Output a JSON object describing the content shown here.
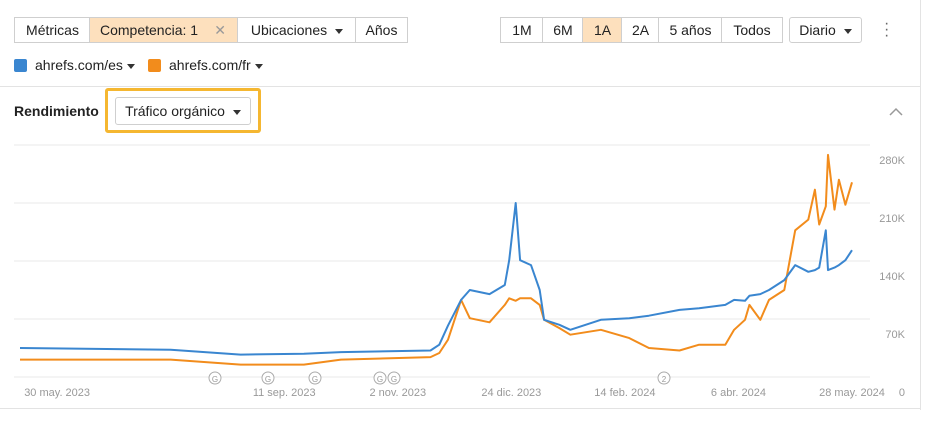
{
  "toolbar": {
    "metrics": "Métricas",
    "competition": "Competencia: 1",
    "locations": "Ubicaciones",
    "years": "Años",
    "ranges": [
      "1M",
      "6M",
      "1A",
      "2A",
      "5 años",
      "Todos"
    ],
    "interval": "Diario"
  },
  "section": {
    "title": "Rendimiento",
    "metric": "Tráfico orgánico"
  },
  "chart_data": {
    "type": "line",
    "x": [
      "2023-05-13",
      "2023-07-21",
      "2023-08-22",
      "2023-09-20",
      "2023-10-07",
      "2023-11-17",
      "2023-11-21",
      "2023-11-25",
      "2023-12-01",
      "2023-12-05",
      "2023-12-14",
      "2023-12-21",
      "2023-12-23",
      "2023-12-26",
      "2023-12-28",
      "2024-01-02",
      "2024-01-06",
      "2024-01-08",
      "2024-01-15",
      "2024-01-20",
      "2024-02-03",
      "2024-02-16",
      "2024-02-25",
      "2024-03-10",
      "2024-03-19",
      "2024-03-31",
      "2024-04-04",
      "2024-04-09",
      "2024-04-11",
      "2024-04-16",
      "2024-04-20",
      "2024-04-27",
      "2024-05-02",
      "2024-05-08",
      "2024-05-11",
      "2024-05-13",
      "2024-05-16",
      "2024-05-17",
      "2024-05-20",
      "2024-05-22",
      "2024-05-25",
      "2024-05-28"
    ],
    "series": [
      {
        "name": "ahrefs.com/es",
        "color": "#3a86d0",
        "values": [
          35000,
          33000,
          27000,
          28000,
          30000,
          32000,
          39000,
          62000,
          93000,
          105000,
          100000,
          111000,
          141000,
          210000,
          141000,
          135000,
          105000,
          69000,
          63000,
          57000,
          69000,
          71000,
          74000,
          81000,
          83000,
          87000,
          93000,
          92000,
          98000,
          100000,
          105000,
          117000,
          135000,
          127000,
          129000,
          132000,
          177000,
          129000,
          132000,
          135000,
          141000,
          153000
        ]
      },
      {
        "name": "ahrefs.com/fr",
        "color": "#f28c1c",
        "values": [
          21000,
          21000,
          15000,
          15000,
          21000,
          24000,
          29000,
          45000,
          93000,
          71000,
          66000,
          87000,
          95000,
          92000,
          95000,
          95000,
          87000,
          69000,
          59000,
          51000,
          57000,
          47000,
          35000,
          32000,
          39000,
          39000,
          57000,
          69000,
          87000,
          69000,
          93000,
          105000,
          177000,
          190000,
          226000,
          184000,
          206000,
          268000,
          202000,
          238000,
          208000,
          235000
        ]
      }
    ],
    "xlim": [
      "2023-05-13",
      "2024-05-28"
    ],
    "xticks": [
      {
        "value": "2023-05-30",
        "label": "30 may. 2023"
      },
      {
        "value": "2023-09-11",
        "label": "11 sep. 2023"
      },
      {
        "value": "2023-11-02",
        "label": "2 nov. 2023"
      },
      {
        "value": "2023-12-24",
        "label": "24 dic. 2023"
      },
      {
        "value": "2024-02-14",
        "label": "14 feb. 2024"
      },
      {
        "value": "2024-04-06",
        "label": "6 abr. 2024"
      },
      {
        "value": "2024-05-28",
        "label": "28 may. 2024"
      }
    ],
    "ylim": [
      0,
      280000
    ],
    "yticks": [
      0,
      {
        "value": 70000,
        "label": "70K"
      },
      {
        "value": 140000,
        "label": "140K"
      },
      {
        "value": 210000,
        "label": "210K"
      },
      {
        "value": 280000,
        "label": "280K"
      }
    ],
    "grid": true,
    "annotations": [
      "G",
      "G",
      "G",
      "G",
      "G",
      "2"
    ]
  }
}
